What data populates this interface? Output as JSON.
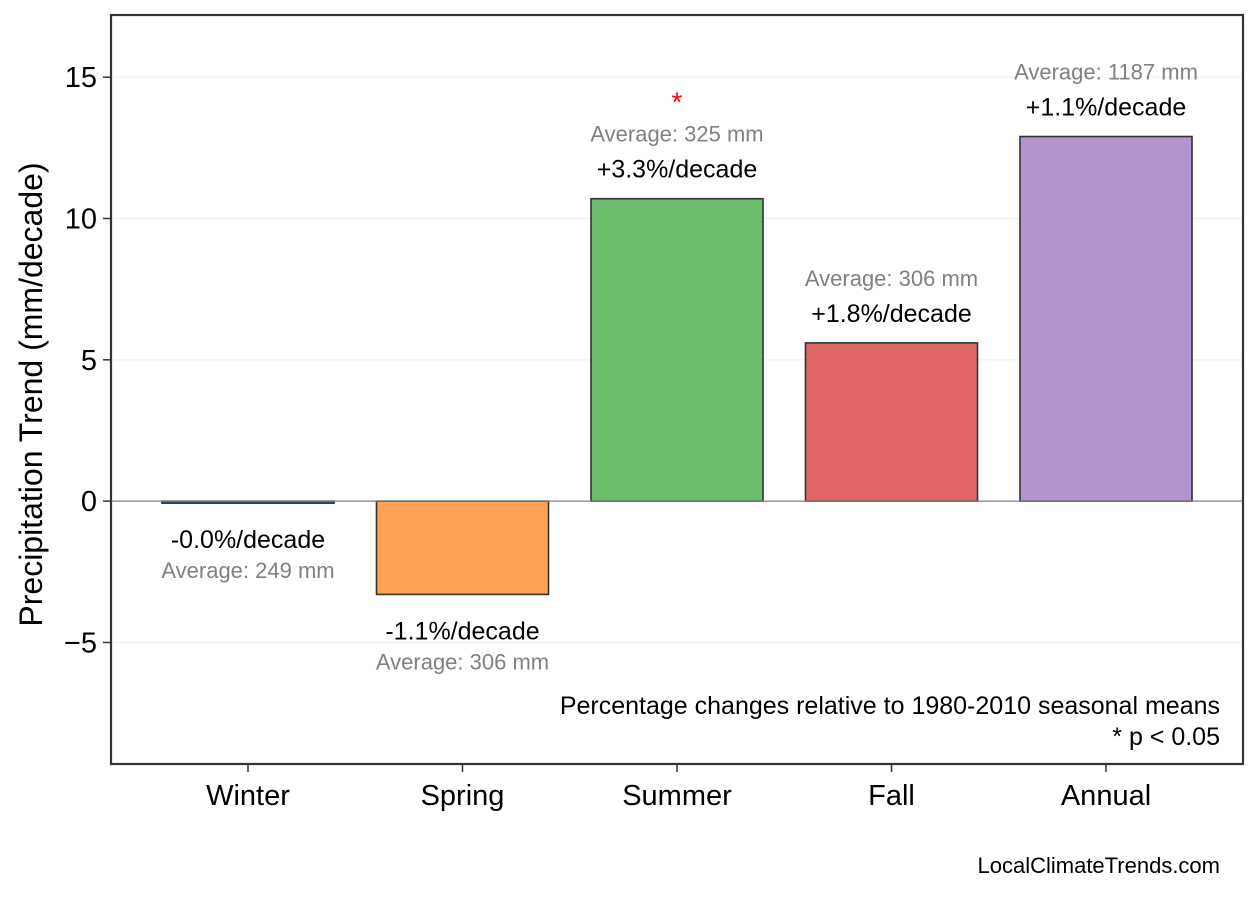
{
  "chart_data": {
    "type": "bar",
    "ylabel": "Precipitation Trend (mm/decade)",
    "xlabel": "",
    "ylim": [
      -9.3,
      17.2
    ],
    "yticks": [
      -5,
      0,
      5,
      10,
      15
    ],
    "ytick_labels": [
      "−5",
      "0",
      "5",
      "10",
      "15"
    ],
    "grid": true,
    "categories": [
      "Winter",
      "Spring",
      "Summer",
      "Fall",
      "Annual"
    ],
    "values": [
      -0.05,
      -3.3,
      10.7,
      5.6,
      12.9
    ],
    "colors": [
      "#1f77b4",
      "#ffa352",
      "#6bbe6b",
      "#e06666",
      "#b294cf"
    ],
    "percent_labels": [
      "-0.0%/decade",
      "-1.1%/decade",
      "+3.3%/decade",
      "+1.8%/decade",
      "+1.1%/decade"
    ],
    "average_labels": [
      "Average: 249 mm",
      "Average: 306 mm",
      "Average: 325 mm",
      "Average: 306 mm",
      "Average: 1187 mm"
    ],
    "significant": [
      false,
      false,
      true,
      false,
      false
    ],
    "significance_marker": "*",
    "note_line1": "Percentage changes relative to 1980-2010 seasonal means",
    "note_line2": "* p < 0.05",
    "source": "LocalClimateTrends.com"
  }
}
